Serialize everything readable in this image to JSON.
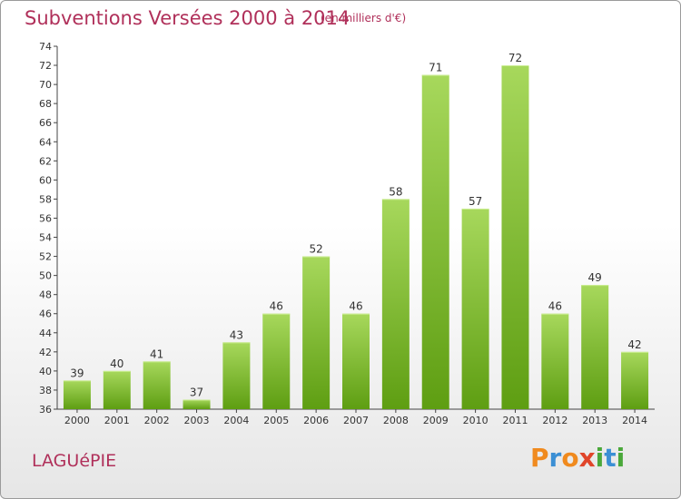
{
  "header": {
    "title": "Subventions Versées 2000 à 2014",
    "subtitle": "(en milliers d'€)"
  },
  "footer": {
    "commune": "LAGUéPIE",
    "logo": "Proxiti"
  },
  "colors": {
    "title": "#b0305a",
    "bar_light": "#a7d85c",
    "bar_dark": "#5e9e12"
  },
  "chart_data": {
    "type": "bar",
    "categories": [
      "2000",
      "2001",
      "2002",
      "2003",
      "2004",
      "2005",
      "2006",
      "2007",
      "2008",
      "2009",
      "2010",
      "2011",
      "2012",
      "2013",
      "2014"
    ],
    "values": [
      39,
      40,
      41,
      37,
      43,
      46,
      52,
      46,
      58,
      71,
      57,
      72,
      46,
      49,
      42
    ],
    "title": "Subventions Versées 2000 à 2014",
    "subtitle": "(en milliers d'€)",
    "ylim": [
      36,
      74
    ],
    "yticks": [
      36,
      38,
      40,
      42,
      44,
      46,
      48,
      50,
      52,
      54,
      56,
      58,
      60,
      62,
      64,
      66,
      68,
      70,
      72,
      74
    ],
    "grid": false,
    "data_labels": true
  }
}
